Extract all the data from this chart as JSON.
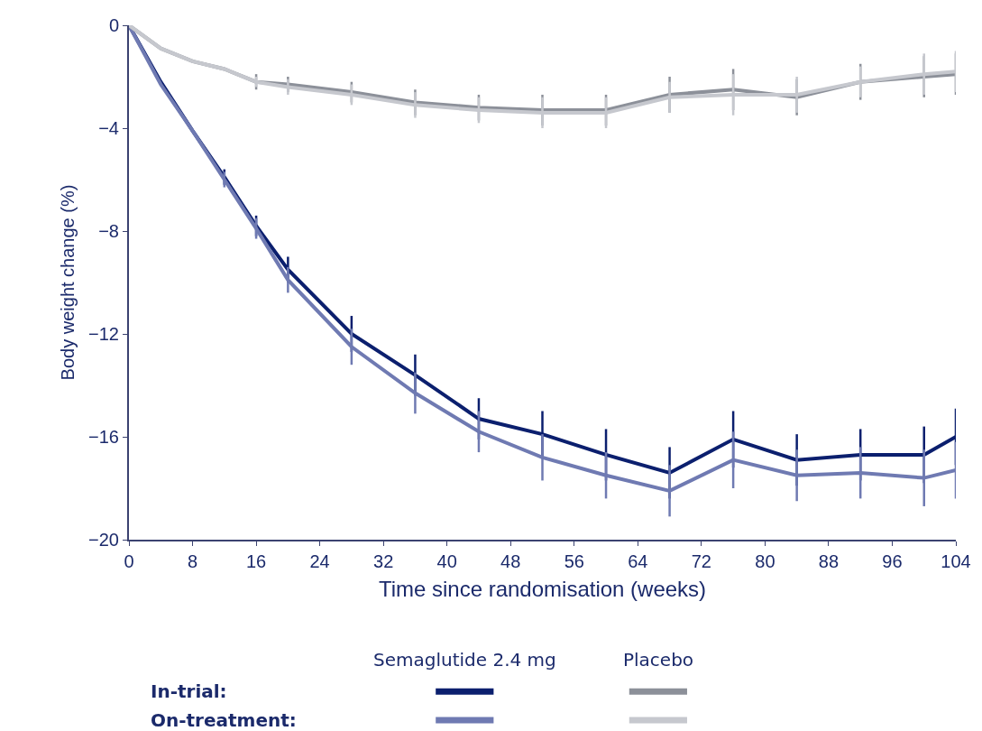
{
  "chart_data": {
    "type": "line",
    "xlabel": "Time since randomisation (weeks)",
    "ylabel": "Body weight change (%)",
    "x": [
      0,
      4,
      8,
      12,
      16,
      20,
      28,
      36,
      44,
      52,
      60,
      68,
      76,
      84,
      92,
      100,
      104
    ],
    "series": [
      {
        "color": "#0b1f6e",
        "values": [
          0,
          -2.2,
          -4.1,
          -5.9,
          -7.8,
          -9.5,
          -12.0,
          -13.6,
          -15.3,
          -15.9,
          -16.7,
          -17.4,
          -16.1,
          -16.9,
          -16.7,
          -16.7,
          -16.0
        ],
        "errors": [
          null,
          null,
          null,
          0.3,
          0.4,
          0.5,
          0.7,
          0.8,
          0.8,
          0.9,
          1.0,
          1.0,
          1.1,
          1.0,
          1.0,
          1.1,
          1.1
        ]
      },
      {
        "color": "#6f7ab2",
        "values": [
          0,
          -2.3,
          -4.1,
          -6.0,
          -7.9,
          -9.9,
          -12.5,
          -14.3,
          -15.8,
          -16.8,
          -17.5,
          -18.1,
          -16.9,
          -17.5,
          -17.4,
          -17.6,
          -17.3
        ],
        "errors": [
          null,
          null,
          null,
          0.3,
          0.4,
          0.5,
          0.7,
          0.8,
          0.8,
          0.9,
          0.9,
          1.0,
          1.1,
          1.0,
          1.0,
          1.1,
          1.1
        ]
      },
      {
        "color": "#8c9099",
        "values": [
          0,
          -0.9,
          -1.4,
          -1.7,
          -2.2,
          -2.3,
          -2.6,
          -3.0,
          -3.2,
          -3.3,
          -3.3,
          -2.7,
          -2.5,
          -2.8,
          -2.2,
          -2.0,
          -1.9
        ],
        "errors": [
          null,
          null,
          null,
          null,
          0.3,
          0.3,
          0.4,
          0.5,
          0.5,
          0.6,
          0.6,
          0.7,
          0.8,
          0.7,
          0.7,
          0.8,
          0.8
        ]
      },
      {
        "color": "#c6c8ce",
        "values": [
          0,
          -0.9,
          -1.4,
          -1.7,
          -2.2,
          -2.4,
          -2.7,
          -3.1,
          -3.3,
          -3.4,
          -3.4,
          -2.8,
          -2.7,
          -2.7,
          -2.2,
          -1.9,
          -1.8
        ],
        "errors": [
          null,
          null,
          null,
          null,
          0.2,
          0.3,
          0.4,
          0.5,
          0.5,
          0.6,
          0.6,
          0.6,
          0.8,
          0.7,
          0.6,
          0.8,
          0.8
        ]
      }
    ],
    "annotations": [
      "Semaglutide 2.4 mg",
      "Placebo",
      "In-trial:",
      "On-treatment:"
    ],
    "xlim": [
      0,
      104
    ],
    "xticks": [
      0,
      8,
      16,
      24,
      32,
      40,
      48,
      56,
      64,
      72,
      80,
      88,
      96,
      104
    ],
    "ylim": [
      -20,
      0
    ],
    "yticks": [
      {
        "value": 0,
        "label": "0"
      },
      {
        "value": -4,
        "label": "−4"
      },
      {
        "value": -8,
        "label": "−8"
      },
      {
        "value": -12,
        "label": "−12"
      },
      {
        "value": -16,
        "label": "−16"
      },
      {
        "value": -20,
        "label": "−20"
      }
    ],
    "marker": "none",
    "line_style": "solid"
  }
}
